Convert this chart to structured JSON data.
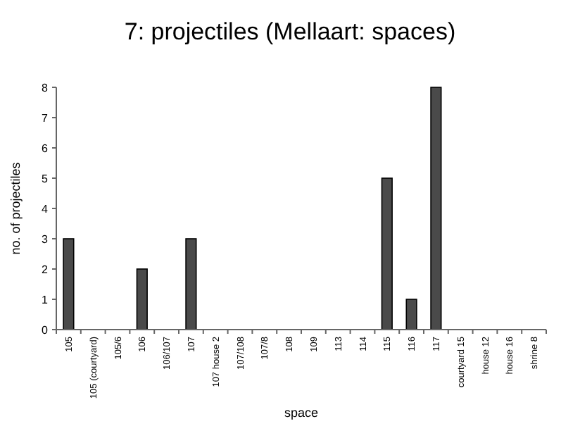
{
  "chart_data": {
    "type": "bar",
    "title": "7: projectiles (Mellaart: spaces)",
    "xlabel": "space",
    "ylabel": "no. of projectiles",
    "categories": [
      "105",
      "105 (courtyard)",
      "105/6",
      "106",
      "106/107",
      "107",
      "107 house 2",
      "107/108",
      "107/8",
      "108",
      "109",
      "113",
      "114",
      "115",
      "116",
      "117",
      "courtyard 15",
      "house 12",
      "house 16",
      "shrine 8"
    ],
    "values": [
      3,
      0,
      0,
      2,
      0,
      3,
      0,
      0,
      0,
      0,
      0,
      0,
      0,
      5,
      1,
      8,
      0,
      0,
      0,
      0
    ],
    "color": "#4a4a4a",
    "ylim": [
      0,
      8
    ],
    "yticks": [
      0,
      1,
      2,
      3,
      4,
      5,
      6,
      7,
      8
    ],
    "grid": false
  }
}
